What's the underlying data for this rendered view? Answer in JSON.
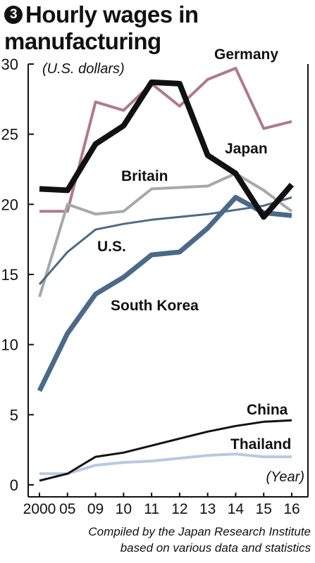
{
  "figure": {
    "badge": "3",
    "title_line1": "Hourly wages in",
    "title_line2": "manufacturing",
    "source_line1": "Compiled by the Japan Research Institute",
    "source_line2": "based on various data and statistics"
  },
  "chart_data": {
    "type": "line",
    "title": "Hourly wages in manufacturing",
    "ylabel": "(U.S. dollars)",
    "xlabel": "(Year)",
    "categories": [
      "2000",
      "05",
      "09",
      "10",
      "11",
      "12",
      "13",
      "14",
      "15",
      "16"
    ],
    "ylim": [
      0,
      30
    ],
    "yticks": [
      0,
      5,
      10,
      15,
      20,
      25,
      30
    ],
    "grid": false,
    "legend": "inline labels",
    "series": [
      {
        "name": "Germany",
        "color": "#b07a8c",
        "values": [
          19.5,
          19.5,
          27.3,
          26.7,
          28.6,
          27.0,
          28.9,
          29.7,
          25.4,
          25.9
        ]
      },
      {
        "name": "Britain",
        "color": "#a8a8a8",
        "values": [
          13.4,
          20.0,
          19.3,
          19.5,
          21.1,
          21.2,
          21.3,
          22.2,
          21.0,
          19.5
        ]
      },
      {
        "name": "U.S.",
        "color": "#4a6a88",
        "values": [
          14.3,
          16.6,
          18.2,
          18.6,
          18.9,
          19.1,
          19.3,
          19.6,
          19.9,
          20.5
        ]
      },
      {
        "name": "Japan",
        "color": "#111111",
        "values": [
          21.1,
          21.0,
          24.3,
          25.6,
          28.7,
          28.6,
          23.5,
          22.2,
          19.1,
          21.4
        ]
      },
      {
        "name": "South Korea",
        "color": "#4a6a88",
        "values": [
          6.7,
          10.8,
          13.6,
          14.8,
          16.4,
          16.6,
          18.3,
          20.5,
          19.4,
          19.2
        ]
      },
      {
        "name": "China",
        "color": "#111111",
        "values": [
          0.3,
          0.8,
          2.0,
          2.3,
          2.8,
          3.3,
          3.8,
          4.2,
          4.5,
          4.6
        ]
      },
      {
        "name": "Thailand",
        "color": "#b9c9e3",
        "values": [
          0.8,
          0.8,
          1.4,
          1.6,
          1.7,
          1.9,
          2.1,
          2.2,
          2.0,
          2.0
        ]
      }
    ]
  }
}
